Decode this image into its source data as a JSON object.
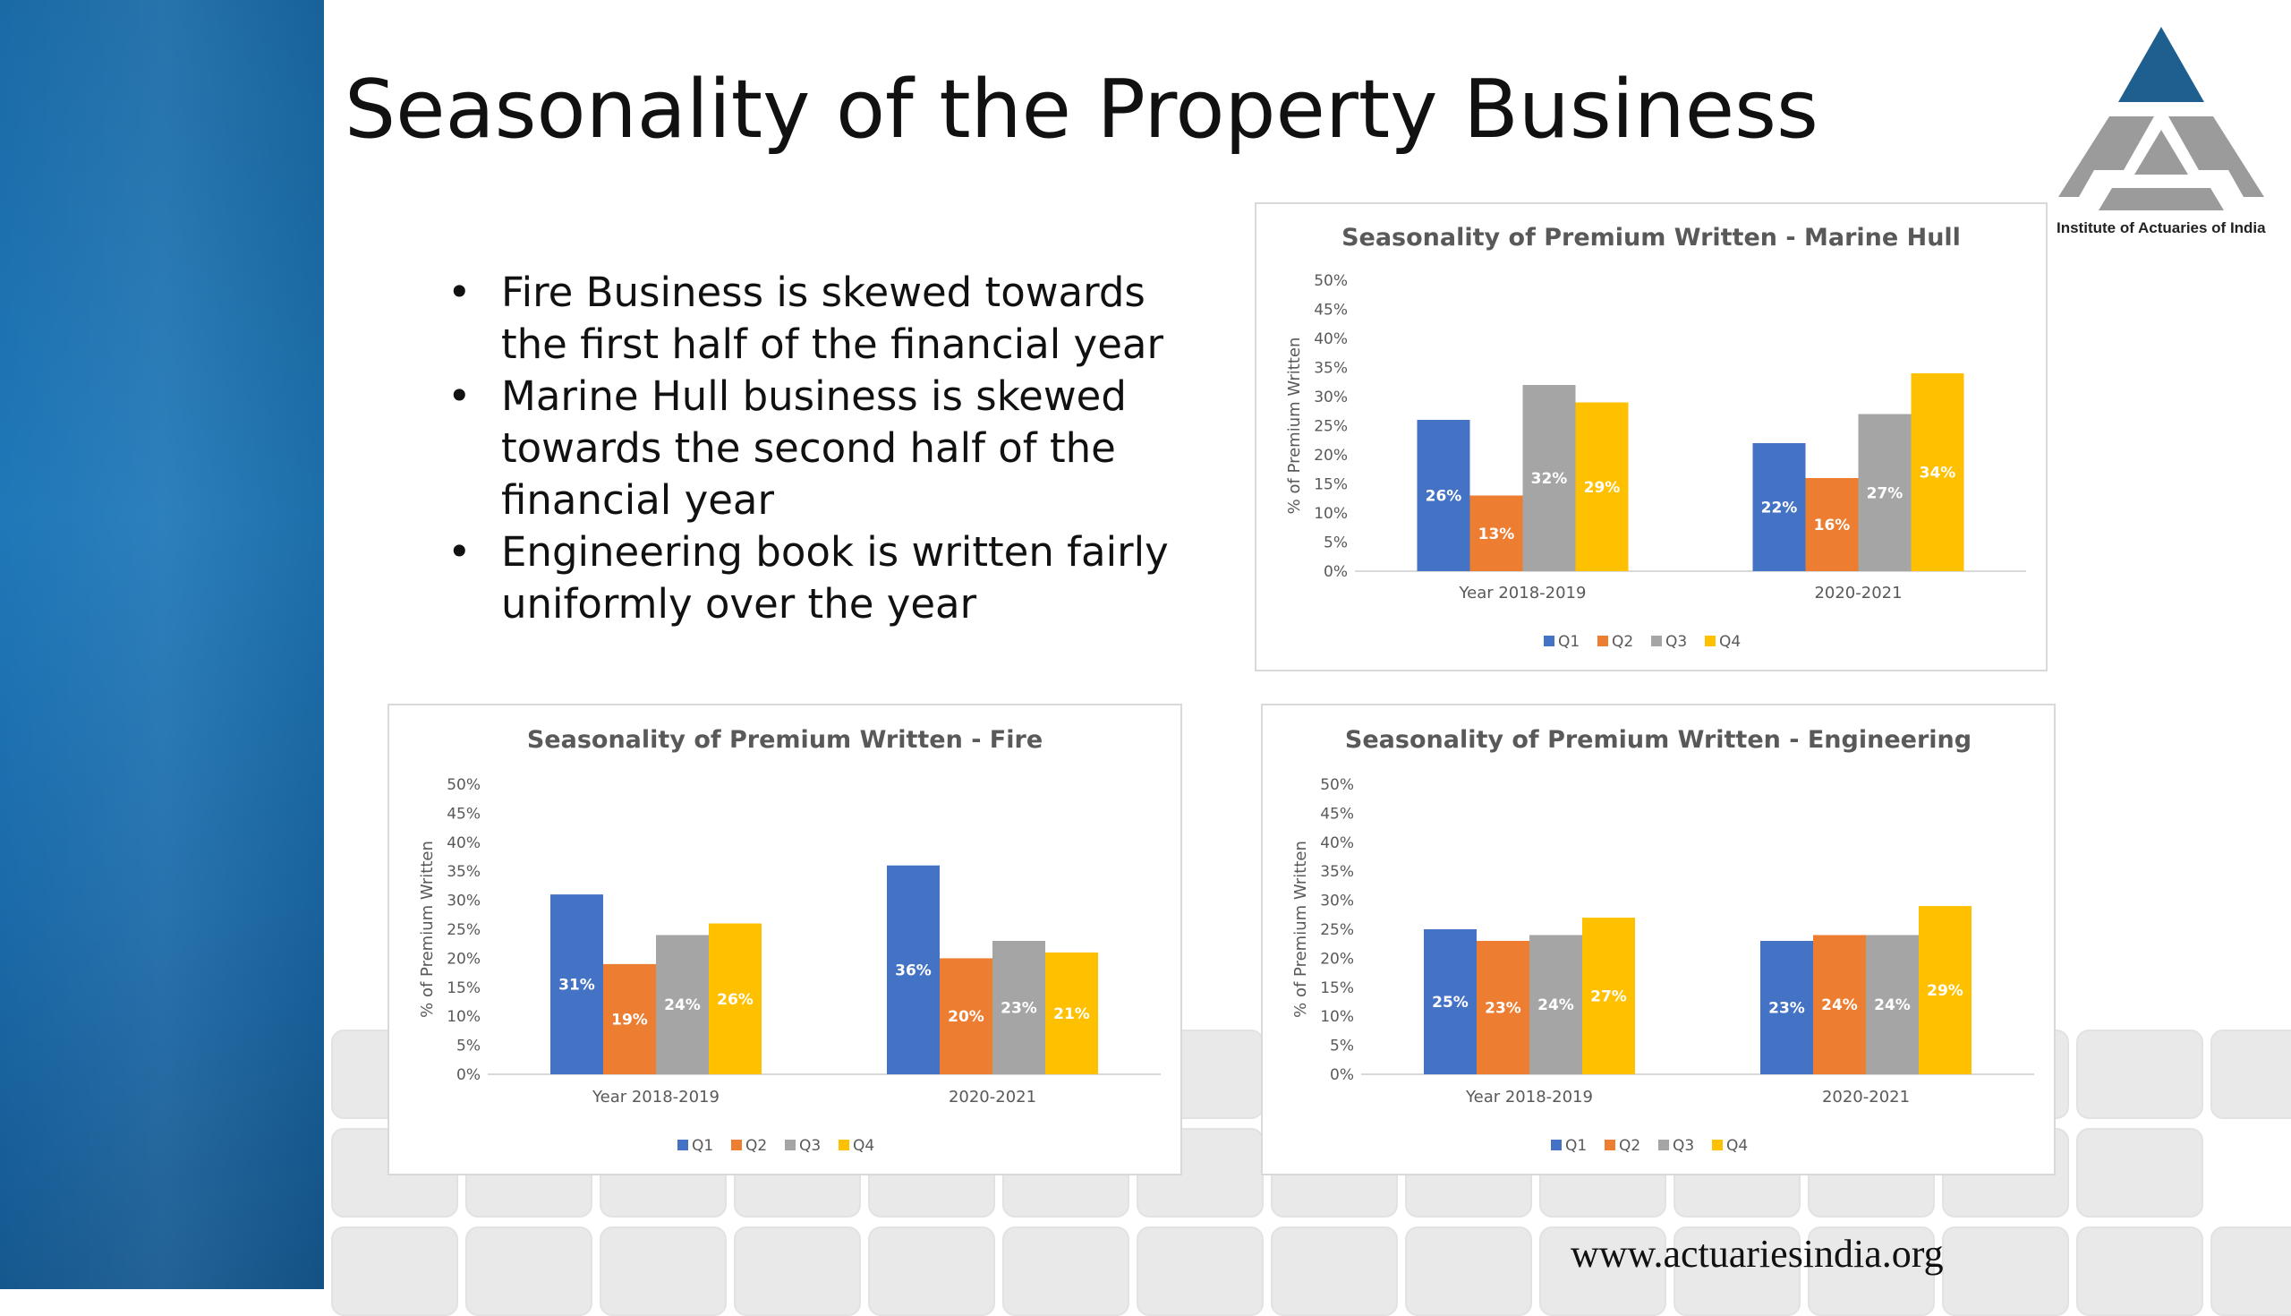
{
  "slide": {
    "title": "Seasonality of the Property Business",
    "bullets": [
      "Fire Business is skewed towards the first half of the financial year",
      "Marine Hull business is skewed towards the second half of the financial year",
      "Engineering book is written fairly uniformly over the year"
    ],
    "bullet_symbol": "•",
    "footer_url": "www.actuariesindia.org",
    "logo_text": "Institute of Actuaries of India"
  },
  "colors": {
    "sidebar": "#1b70b0",
    "Q1": "#4472C4",
    "Q2": "#ED7D31",
    "Q3": "#A5A5A5",
    "Q4": "#FFC000",
    "logo": "#9b9b9b",
    "logo_top": "#1f5f8f"
  },
  "chart_data": [
    {
      "id": "marine",
      "type": "bar",
      "title": "Seasonality of Premium Written -  Marine Hull",
      "ylabel": "% of Premium Written",
      "categories": [
        "Year 2018-2019",
        "2020-2021"
      ],
      "ylim": [
        0,
        50
      ],
      "yticks": [
        "0%",
        "5%",
        "10%",
        "15%",
        "20%",
        "25%",
        "30%",
        "35%",
        "40%",
        "45%",
        "50%"
      ],
      "legend": "bottom",
      "series": [
        {
          "name": "Q1",
          "values": [
            26,
            22
          ],
          "labels": [
            "26%",
            "22%"
          ]
        },
        {
          "name": "Q2",
          "values": [
            13,
            16
          ],
          "labels": [
            "13%",
            "16%"
          ]
        },
        {
          "name": "Q3",
          "values": [
            32,
            27
          ],
          "labels": [
            "32%",
            "27%"
          ]
        },
        {
          "name": "Q4",
          "values": [
            29,
            34
          ],
          "labels": [
            "29%",
            "34%"
          ]
        }
      ]
    },
    {
      "id": "fire",
      "type": "bar",
      "title": "Seasonality of Premium Written - Fire",
      "ylabel": "% of Premium Written",
      "categories": [
        "Year 2018-2019",
        "2020-2021"
      ],
      "ylim": [
        0,
        50
      ],
      "yticks": [
        "0%",
        "5%",
        "10%",
        "15%",
        "20%",
        "25%",
        "30%",
        "35%",
        "40%",
        "45%",
        "50%"
      ],
      "legend": "bottom",
      "series": [
        {
          "name": "Q1",
          "values": [
            31,
            36
          ],
          "labels": [
            "31%",
            "36%"
          ]
        },
        {
          "name": "Q2",
          "values": [
            19,
            20
          ],
          "labels": [
            "19%",
            "20%"
          ]
        },
        {
          "name": "Q3",
          "values": [
            24,
            23
          ],
          "labels": [
            "24%",
            "23%"
          ]
        },
        {
          "name": "Q4",
          "values": [
            26,
            21
          ],
          "labels": [
            "26%",
            "21%"
          ]
        }
      ]
    },
    {
      "id": "engineering",
      "type": "bar",
      "title": "Seasonality of Premium Written -  Engineering",
      "ylabel": "% of Premium Written",
      "categories": [
        "Year 2018-2019",
        "2020-2021"
      ],
      "ylim": [
        0,
        50
      ],
      "yticks": [
        "0%",
        "5%",
        "10%",
        "15%",
        "20%",
        "25%",
        "30%",
        "35%",
        "40%",
        "45%",
        "50%"
      ],
      "legend": "bottom",
      "series": [
        {
          "name": "Q1",
          "values": [
            25,
            23
          ],
          "labels": [
            "25%",
            "23%"
          ]
        },
        {
          "name": "Q2",
          "values": [
            23,
            24
          ],
          "labels": [
            "23%",
            "24%"
          ]
        },
        {
          "name": "Q3",
          "values": [
            24,
            24
          ],
          "labels": [
            "24%",
            "24%"
          ]
        },
        {
          "name": "Q4",
          "values": [
            27,
            29
          ],
          "labels": [
            "27%",
            "29%"
          ]
        }
      ]
    }
  ]
}
